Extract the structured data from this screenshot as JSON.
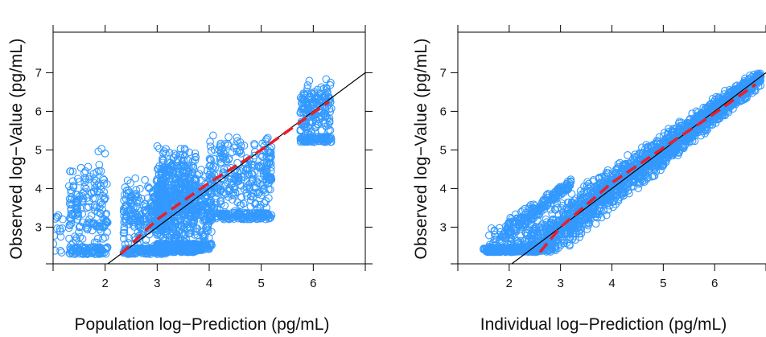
{
  "chart_data": [
    {
      "type": "scatter",
      "xlabel": "Population log−Prediction (pg/mL)",
      "ylabel": "Observed log−Value (pg/mL)",
      "xlim": [
        1,
        7
      ],
      "ylim": [
        2.05,
        8.05
      ],
      "x_ticks": [
        2,
        3,
        4,
        5,
        6
      ],
      "y_ticks": [
        3,
        4,
        5,
        6,
        7
      ],
      "grid": false,
      "colors": {
        "points": "#3399ff",
        "trend": "#e8202a",
        "identity": "#000000"
      },
      "identity_line": {
        "from": [
          2.05,
          2.05
        ],
        "to": [
          7.0,
          7.0
        ]
      },
      "trend_line": {
        "x": [
          2.3,
          3.0,
          4.0,
          5.0,
          6.3
        ],
        "y": [
          2.3,
          3.2,
          4.15,
          5.0,
          6.25
        ]
      },
      "clusters": [
        {
          "x_range": [
            1.0,
            1.2
          ],
          "y_range": [
            2.3,
            3.7
          ],
          "n": 15
        },
        {
          "x_range": [
            1.3,
            2.05
          ],
          "y_range": [
            2.3,
            4.7
          ],
          "n": 280
        },
        {
          "x_range": [
            1.85,
            2.0
          ],
          "y_range": [
            4.9,
            5.05
          ],
          "n": 3
        },
        {
          "x_range": [
            2.35,
            3.2
          ],
          "y_range": [
            2.3,
            4.3
          ],
          "n": 380
        },
        {
          "x_range": [
            3.0,
            3.75
          ],
          "y_range": [
            2.35,
            5.2
          ],
          "n": 900
        },
        {
          "x_range": [
            3.75,
            4.05
          ],
          "y_range": [
            2.4,
            4.6
          ],
          "n": 160
        },
        {
          "x_range": [
            4.0,
            5.2
          ],
          "y_range": [
            3.2,
            5.4
          ],
          "n": 420
        },
        {
          "x_range": [
            5.1,
            5.2
          ],
          "y_range": [
            4.2,
            5.4
          ],
          "n": 30
        },
        {
          "x_range": [
            5.75,
            6.35
          ],
          "y_range": [
            5.2,
            6.95
          ],
          "n": 260
        }
      ]
    },
    {
      "type": "scatter",
      "xlabel": "Individual log−Prediction (pg/mL)",
      "ylabel": "Observed log−Value (pg/mL)",
      "xlim": [
        1,
        7
      ],
      "ylim": [
        2.05,
        8.05
      ],
      "x_ticks": [
        2,
        3,
        4,
        5,
        6
      ],
      "y_ticks": [
        3,
        4,
        5,
        6,
        7
      ],
      "grid": false,
      "colors": {
        "points": "#3399ff",
        "trend": "#e8202a",
        "identity": "#000000"
      },
      "identity_line": {
        "from": [
          2.05,
          2.05
        ],
        "to": [
          7.0,
          7.0
        ]
      },
      "trend_line": {
        "x": [
          2.6,
          3.0,
          4.0,
          5.0,
          6.0,
          6.8
        ],
        "y": [
          2.35,
          3.0,
          4.15,
          5.05,
          5.95,
          6.7
        ]
      },
      "bands": [
        {
          "x_from": 1.5,
          "x_to": 6.9,
          "y_offset": 0.0,
          "spread_low": 0.9,
          "spread_high": 0.9,
          "n": 2200
        },
        {
          "x_from": 1.6,
          "x_to": 3.2,
          "y_offset": 0.9,
          "spread_low": 0.3,
          "spread_high": 0.5,
          "n": 250
        }
      ]
    }
  ]
}
